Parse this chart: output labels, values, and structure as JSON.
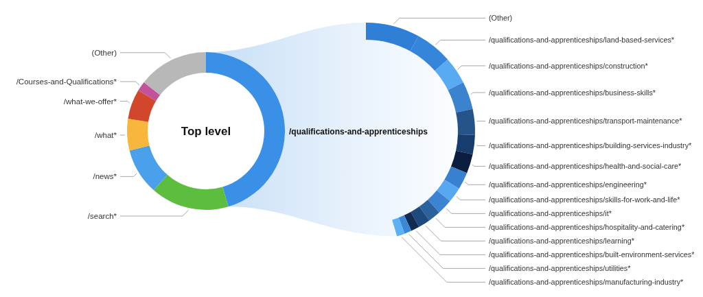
{
  "chart_data": [
    {
      "type": "donut",
      "title": "Top level",
      "categories": [
        null,
        "/search*",
        "/news*",
        "/what*",
        "/what-we-offer*",
        "/Courses-and-Qualifications*",
        "(Other)"
      ],
      "values": [
        45.4,
        16.1,
        9.5,
        6.5,
        6.1,
        2.0,
        14.4
      ],
      "colors": [
        "#3a8fe6",
        "#5dbd3e",
        "#4aa0ea",
        "#f6b73c",
        "#d2472b",
        "#c2529a",
        "#b8b8b8"
      ]
    },
    {
      "type": "donut",
      "title": "/qualifications-and-apprenticeships",
      "categories": [
        "(Other)",
        "/qualifications-and-apprenticeships/land-based-services*",
        "/qualifications-and-apprenticeships/construction*",
        "/qualifications-and-apprenticeships/business-skills*",
        "/qualifications-and-apprenticeships/transport-maintenance*",
        "/qualifications-and-apprenticeships/building-services-industry*",
        "/qualifications-and-apprenticeships/health-and-social-care*",
        "/qualifications-and-apprenticeships/engineering*",
        "/qualifications-and-apprenticeships/skills-for-work-and-life*",
        "/qualifications-and-apprenticeships/it*",
        "/qualifications-and-apprenticeships/hospitality-and-catering*",
        "/qualifications-and-apprenticeships/learning*",
        "/qualifications-and-apprenticeships/built-environment-services*",
        "/qualifications-and-apprenticeships/utilities*",
        "/qualifications-and-apprenticeships/manufacturing-industry*"
      ],
      "values": [
        17.6,
        12.1,
        8.9,
        9.1,
        8.4,
        6.3,
        6.3,
        5.6,
        5.0,
        5.0,
        4.1,
        3.9,
        2.8,
        2.3,
        2.6
      ],
      "colors": [
        "#2f7fd6",
        "#3586db",
        "#58aaf2",
        "#3b82cf",
        "#245489",
        "#173d6e",
        "#0c1d3f",
        "#3a80d0",
        "#56a8f0",
        "#3c84d2",
        "#2c629c",
        "#1f4a7e",
        "#112b52",
        "#3b87d8",
        "#5cb0f3"
      ]
    }
  ]
}
